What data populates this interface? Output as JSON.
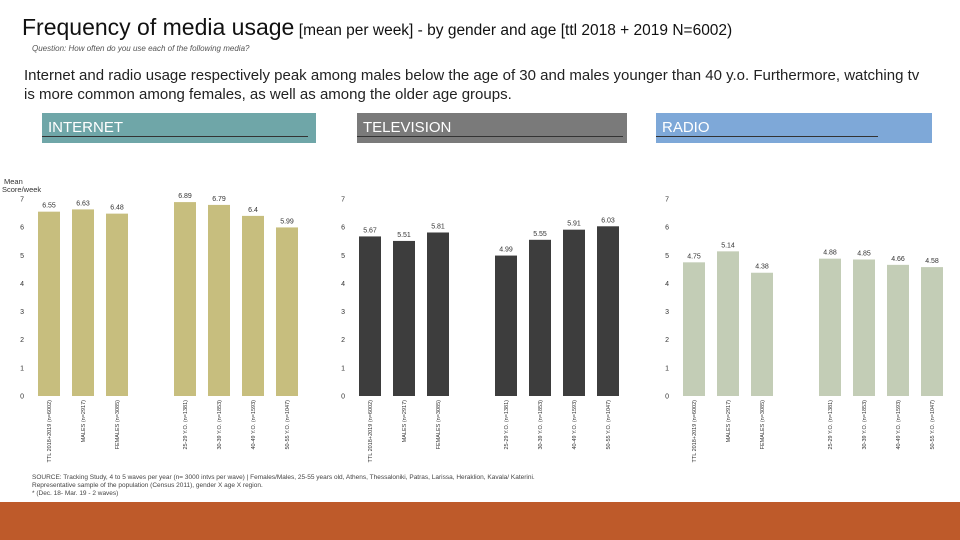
{
  "header": {
    "title": "Frequency of media usage",
    "subtitle": "[mean per week] - by gender and age [ttl 2018 + 2019 N=6002)",
    "question": "Question: How often do you use each of the following media?",
    "summary": "Internet and radio usage respectively peak among males below the age of 30 and males younger than 40 y.o. Furthermore, watching tv is more common among females, as well as among the older age groups."
  },
  "colors": {
    "internet_bar": "#c7be7e",
    "television_bar": "#3d3d3d",
    "radio_bar": "#c3cdb6",
    "internet_header": "#6fa6a8",
    "television_header": "#7a7a7a",
    "radio_header": "#7ea8d8",
    "footer": "#be5a2a"
  },
  "y_axis_label": "Mean Score/week",
  "source_text": [
    "SOURCE: Tracking Study, 4 to 5 waves per year (n= 3000 intvs per wave) | Females/Males, 25-55 years old, Athens, Thessaloniki, Patras, Larissa, Heraklion, Kavala/ Katerini.",
    "Representative sample of the population (Census 2011), gender X age X region.",
    "* (Dec. 18- Mar. 19 - 2 waves)"
  ],
  "chart_data": [
    {
      "type": "bar",
      "title": "INTERNET",
      "categories": [
        "TTL 2018+2019 (n=6002)",
        "MALES (n=2917)",
        "FEMALES (n=3085)",
        "",
        "25-29 Y.O. (n=1381)",
        "30-39 Y.O. (n=1853)",
        "40-49 Y.O. (n=1593)",
        "50-55 Y.O. (n=1047)"
      ],
      "values": [
        6.55,
        6.63,
        6.48,
        null,
        6.89,
        6.79,
        6.4,
        5.99
      ],
      "labels": [
        "6.55",
        "6.63",
        "6.48",
        "",
        "6.89",
        "6.79",
        "6.4",
        "5.99"
      ],
      "ylim": [
        0,
        7
      ],
      "yticks": [
        "0",
        "1",
        "2",
        "3",
        "4",
        "5",
        "6",
        "7"
      ]
    },
    {
      "type": "bar",
      "title": "TELEVISION",
      "categories": [
        "TTL 2018+2019 (n=6002)",
        "MALES (n=2917)",
        "FEMALES (n=3085)",
        "",
        "25-29 Y.O. (n=1381)",
        "30-39 Y.O. (n=1853)",
        "40-49 Y.O. (n=1593)",
        "50-55 Y.O. (n=1047)"
      ],
      "values": [
        5.67,
        5.51,
        5.81,
        null,
        4.99,
        5.55,
        5.91,
        6.03
      ],
      "labels": [
        "5.67",
        "5.51",
        "5.81",
        "",
        "4.99",
        "5.55",
        "5.91",
        "6.03"
      ],
      "ylim": [
        0,
        7
      ],
      "yticks": [
        "0",
        "1",
        "2",
        "3",
        "4",
        "5",
        "6",
        "7"
      ]
    },
    {
      "type": "bar",
      "title": "RADIO",
      "categories": [
        "TTL 2018+2019 (n=6002)",
        "MALES (n=2917)",
        "FEMALES (n=3085)",
        "",
        "25-29 Y.O. (n=1381)",
        "30-39 Y.O. (n=1853)",
        "40-49 Y.O. (n=1593)",
        "50-55 Y.O. (n=1047)"
      ],
      "values": [
        4.75,
        5.14,
        4.38,
        null,
        4.88,
        4.85,
        4.66,
        4.58
      ],
      "labels": [
        "4.75",
        "5.14",
        "4.38",
        "",
        "4.88",
        "4.85",
        "4.66",
        "4.58"
      ],
      "ylim": [
        0,
        7
      ],
      "yticks": [
        "0",
        "1",
        "2",
        "3",
        "4",
        "5",
        "6",
        "7"
      ]
    }
  ]
}
